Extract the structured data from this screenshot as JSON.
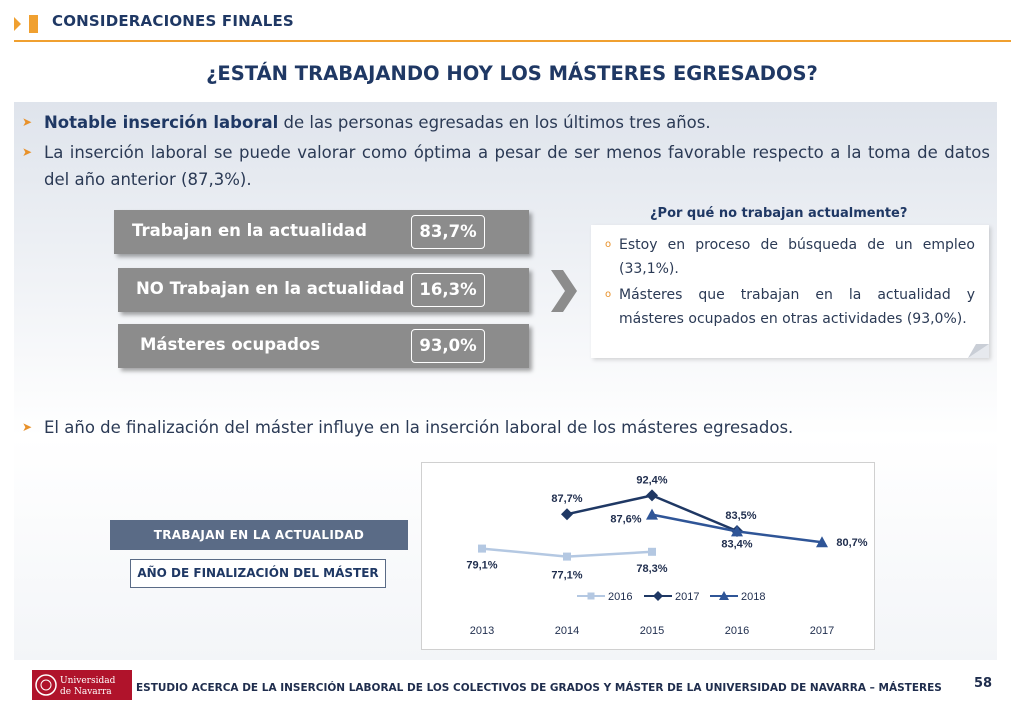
{
  "header": {
    "section_title": "CONSIDERACIONES FINALES",
    "page_title": "¿ESTÁN TRABAJANDO HOY LOS MÁSTERES EGRESADOS?"
  },
  "bullets": [
    {
      "bold": "Notable inserción laboral",
      "rest": " de las personas egresadas en los últimos tres años."
    },
    {
      "bold": "",
      "rest": "La inserción laboral se puede valorar como óptima a pesar de ser menos favorable respecto a la toma de datos del año anterior (87,3%)."
    },
    {
      "bold": "",
      "rest": "El año de finalización del máster influye en la inserción laboral  de los másteres egresados."
    }
  ],
  "stats": [
    {
      "label": "Trabajan en la actualidad",
      "value": "83,7%"
    },
    {
      "label": "NO Trabajan en la actualidad",
      "value": "16,3%"
    },
    {
      "label": "Másteres ocupados",
      "value": "93,0%"
    }
  ],
  "why": {
    "title": "¿Por qué no trabajan actualmente?",
    "items": [
      "Estoy en proceso de búsqueda de un empleo (33,1%).",
      "Másteres que trabajan en la actualidad y másteres ocupados en otras actividades (93,0%)."
    ]
  },
  "labels": {
    "trabajan": "TRABAJAN EN LA ACTUALIDAD",
    "anio": "AÑO DE FINALIZACIÓN DEL MÁSTER"
  },
  "chart_data": {
    "type": "line",
    "x": [
      "2013",
      "2014",
      "2015",
      "2016",
      "2017"
    ],
    "series": [
      {
        "name": "2016",
        "color": "#b4c8e2",
        "marker": "square",
        "values": [
          79.1,
          77.1,
          78.3,
          null,
          null
        ],
        "labels": [
          "79,1%",
          "77,1%",
          "78,3%",
          "",
          ""
        ]
      },
      {
        "name": "2017",
        "color": "#1f3864",
        "marker": "diamond",
        "values": [
          null,
          87.7,
          92.4,
          83.5,
          null
        ],
        "labels": [
          "",
          "87,7%",
          "92,4%",
          "83,5%",
          ""
        ]
      },
      {
        "name": "2018",
        "color": "#2f5597",
        "marker": "triangle",
        "values": [
          null,
          null,
          87.6,
          83.4,
          80.7
        ],
        "labels": [
          "",
          "",
          "87,6%",
          "83,4%",
          "80,7%"
        ]
      }
    ],
    "legend": "bottom",
    "grid": false
  },
  "footer": {
    "logo_text": "Universidad de Navarra",
    "text": "ESTUDIO ACERCA DE LA INSERCIÓN LABORAL DE LOS COLECTIVOS DE GRADOS Y MÁSTER DE LA UNIVERSIDAD DE NAVARRA – MÁSTERES",
    "page": "58"
  }
}
